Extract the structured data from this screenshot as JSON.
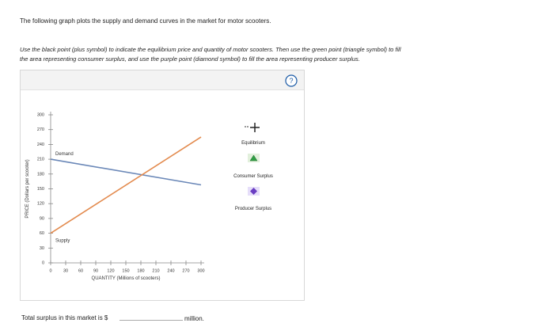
{
  "header": {
    "intro": "The following graph plots the supply and demand curves in the market for motor scooters.",
    "instructions": "Use the black point (plus symbol) to indicate the equilibrium price and quantity of motor scooters. Then use the green point (triangle symbol) to fill",
    "instructions2": "the area representing consumer surplus, and use the purple point (diamond symbol) to fill the area representing producer surplus.",
    "help": "?"
  },
  "chart_data": {
    "type": "line",
    "xlabel": "QUANTITY (Millions of scooters)",
    "ylabel": "PRICE (Dollars per scooter)",
    "xlim": [
      0,
      300
    ],
    "ylim": [
      0,
      300
    ],
    "xticks": [
      0,
      30,
      60,
      90,
      120,
      150,
      180,
      210,
      240,
      270,
      300
    ],
    "yticks": [
      0,
      30,
      60,
      90,
      120,
      150,
      180,
      210,
      240,
      270,
      300
    ],
    "series": [
      {
        "name": "Demand",
        "color": "#6b88b8",
        "x": [
          0,
          300
        ],
        "values": [
          210,
          158
        ]
      },
      {
        "name": "Supply",
        "color": "#e38b4f",
        "x": [
          0,
          300
        ],
        "values": [
          60,
          255
        ]
      }
    ]
  },
  "legend": {
    "items": [
      "Equilibrium",
      "Consumer Surplus",
      "Producer Surplus"
    ]
  },
  "footer": {
    "prompt": "Total surplus in this market is $",
    "unit": "million."
  }
}
